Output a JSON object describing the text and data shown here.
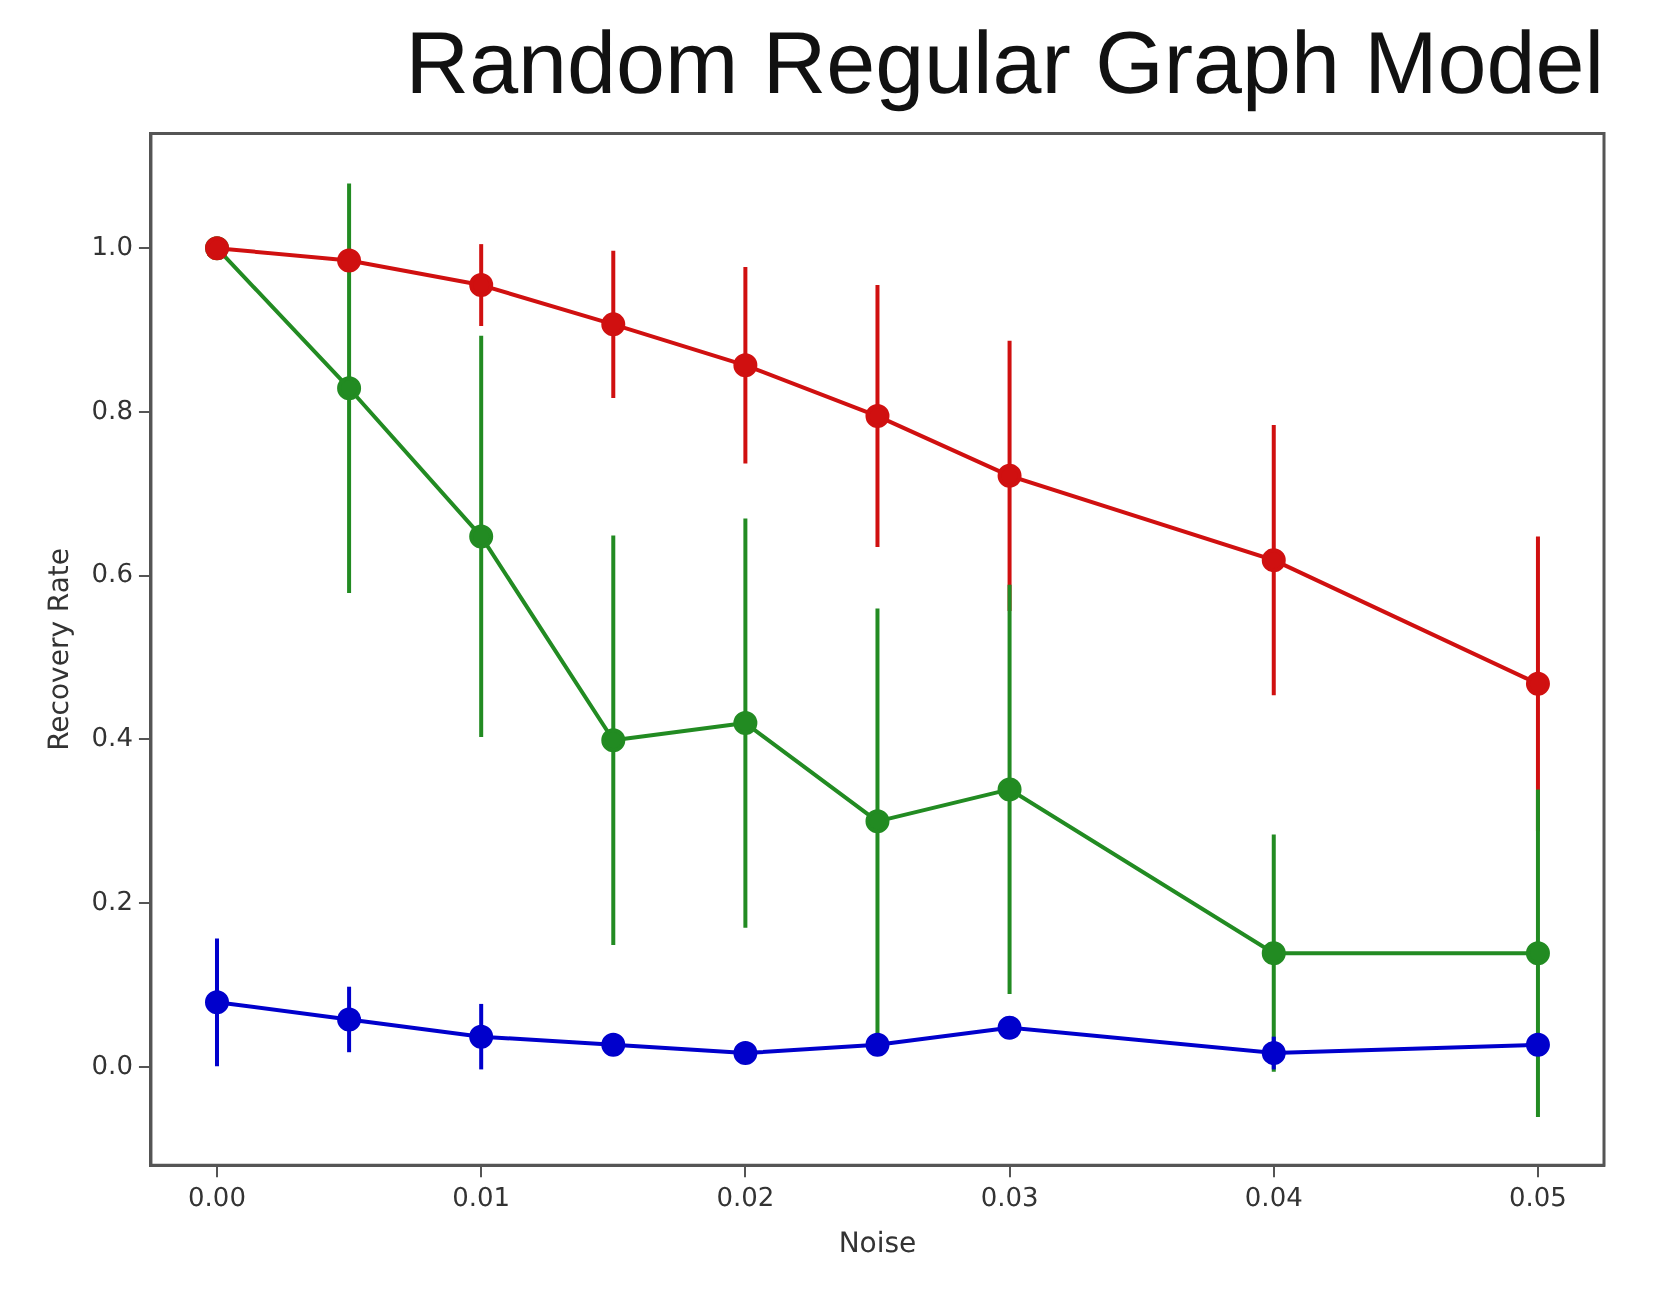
{
  "chart_data": {
    "type": "line",
    "title": "Random Regular Graph Model",
    "xlabel": "Noise",
    "ylabel": "Recovery Rate",
    "x": [
      0,
      0.005,
      0.01,
      0.015,
      0.02,
      0.025,
      0.03,
      0.04,
      0.05
    ],
    "series": [
      {
        "color": "#d01010",
        "values": [
          1.0,
          0.985,
          0.955,
          0.907,
          0.857,
          0.795,
          0.722,
          0.619,
          0.468
        ],
        "errors": [
          null,
          null,
          0.05,
          0.09,
          0.12,
          0.16,
          0.165,
          0.165,
          0.18
        ]
      },
      {
        "color": "#228b22",
        "values": [
          1.0,
          0.829,
          0.648,
          0.399,
          0.42,
          0.3,
          0.339,
          0.139,
          0.139
        ],
        "errors": [
          null,
          0.25,
          0.245,
          0.25,
          0.25,
          0.26,
          0.25,
          0.145,
          0.2
        ]
      },
      {
        "color": "#0000cc",
        "values": [
          0.079,
          0.058,
          0.037,
          0.027,
          0.017,
          0.027,
          0.048,
          0.017,
          0.027
        ],
        "errors": [
          0.078,
          0.04,
          0.04,
          null,
          null,
          null,
          null,
          0.02,
          null
        ]
      }
    ],
    "xlim": [
      -0.0025,
      0.0525
    ],
    "ylim": [
      -0.12,
      1.14
    ],
    "xticks": [
      {
        "value": 0,
        "label": "0.00"
      },
      {
        "value": 0.01,
        "label": "0.01"
      },
      {
        "value": 0.02,
        "label": "0.02"
      },
      {
        "value": 0.03,
        "label": "0.03"
      },
      {
        "value": 0.04,
        "label": "0.04"
      },
      {
        "value": 0.05,
        "label": "0.05"
      }
    ],
    "yticks": [
      {
        "value": 0,
        "label": "0.0"
      },
      {
        "value": 0.2,
        "label": "0.2"
      },
      {
        "value": 0.4,
        "label": "0.4"
      },
      {
        "value": 0.6,
        "label": "0.6"
      },
      {
        "value": 0.8,
        "label": "0.8"
      },
      {
        "value": 1.0,
        "label": "1.0"
      }
    ],
    "grid": false,
    "legend": false,
    "marker": "circle",
    "line_style": "solid"
  }
}
